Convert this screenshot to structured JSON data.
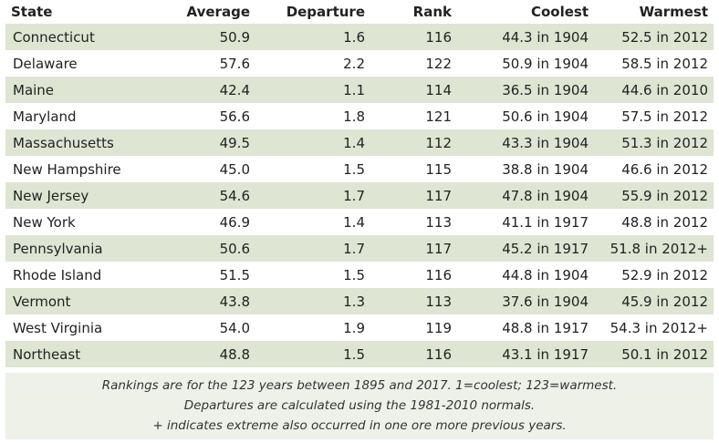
{
  "table": {
    "headers": [
      "State",
      "Average",
      "Departure",
      "Rank",
      "Coolest",
      "Warmest"
    ],
    "rows": [
      [
        "Connecticut",
        "50.9",
        "1.6",
        "116",
        "44.3 in 1904",
        "52.5 in 2012"
      ],
      [
        "Delaware",
        "57.6",
        "2.2",
        "122",
        "50.9 in 1904",
        "58.5 in 2012"
      ],
      [
        "Maine",
        "42.4",
        "1.1",
        "114",
        "36.5 in 1904",
        "44.6 in 2010"
      ],
      [
        "Maryland",
        "56.6",
        "1.8",
        "121",
        "50.6 in 1904",
        "57.5 in 2012"
      ],
      [
        "Massachusetts",
        "49.5",
        "1.4",
        "112",
        "43.3 in 1904",
        "51.3 in 2012"
      ],
      [
        "New Hampshire",
        "45.0",
        "1.5",
        "115",
        "38.8 in 1904",
        "46.6 in 2012"
      ],
      [
        "New Jersey",
        "54.6",
        "1.7",
        "117",
        "47.8 in 1904",
        "55.9 in 2012"
      ],
      [
        "New York",
        "46.9",
        "1.4",
        "113",
        "41.1 in 1917",
        "48.8 in 2012"
      ],
      [
        "Pennsylvania",
        "50.6",
        "1.7",
        "117",
        "45.2 in 1917",
        "51.8 in 2012+"
      ],
      [
        "Rhode Island",
        "51.5",
        "1.5",
        "116",
        "44.8 in 1904",
        "52.9 in 2012"
      ],
      [
        "Vermont",
        "43.8",
        "1.3",
        "113",
        "37.6 in 1904",
        "45.9 in 2012"
      ],
      [
        "West Virginia",
        "54.0",
        "1.9",
        "119",
        "48.8 in 1917",
        "54.3 in 2012+"
      ],
      [
        "Northeast",
        "48.8",
        "1.5",
        "116",
        "43.1 in 1917",
        "50.1 in 2012"
      ]
    ]
  },
  "notes": [
    "Rankings are for the 123 years between 1895 and 2017. 1=coolest; 123=warmest.",
    "Departures are calculated using the 1981-2010 normals.",
    "+ indicates extreme also occurred in one ore more previous years."
  ],
  "colors": {
    "band": "#dfe5d3",
    "notes_bg": "#eef1e8",
    "text": "#222222"
  }
}
